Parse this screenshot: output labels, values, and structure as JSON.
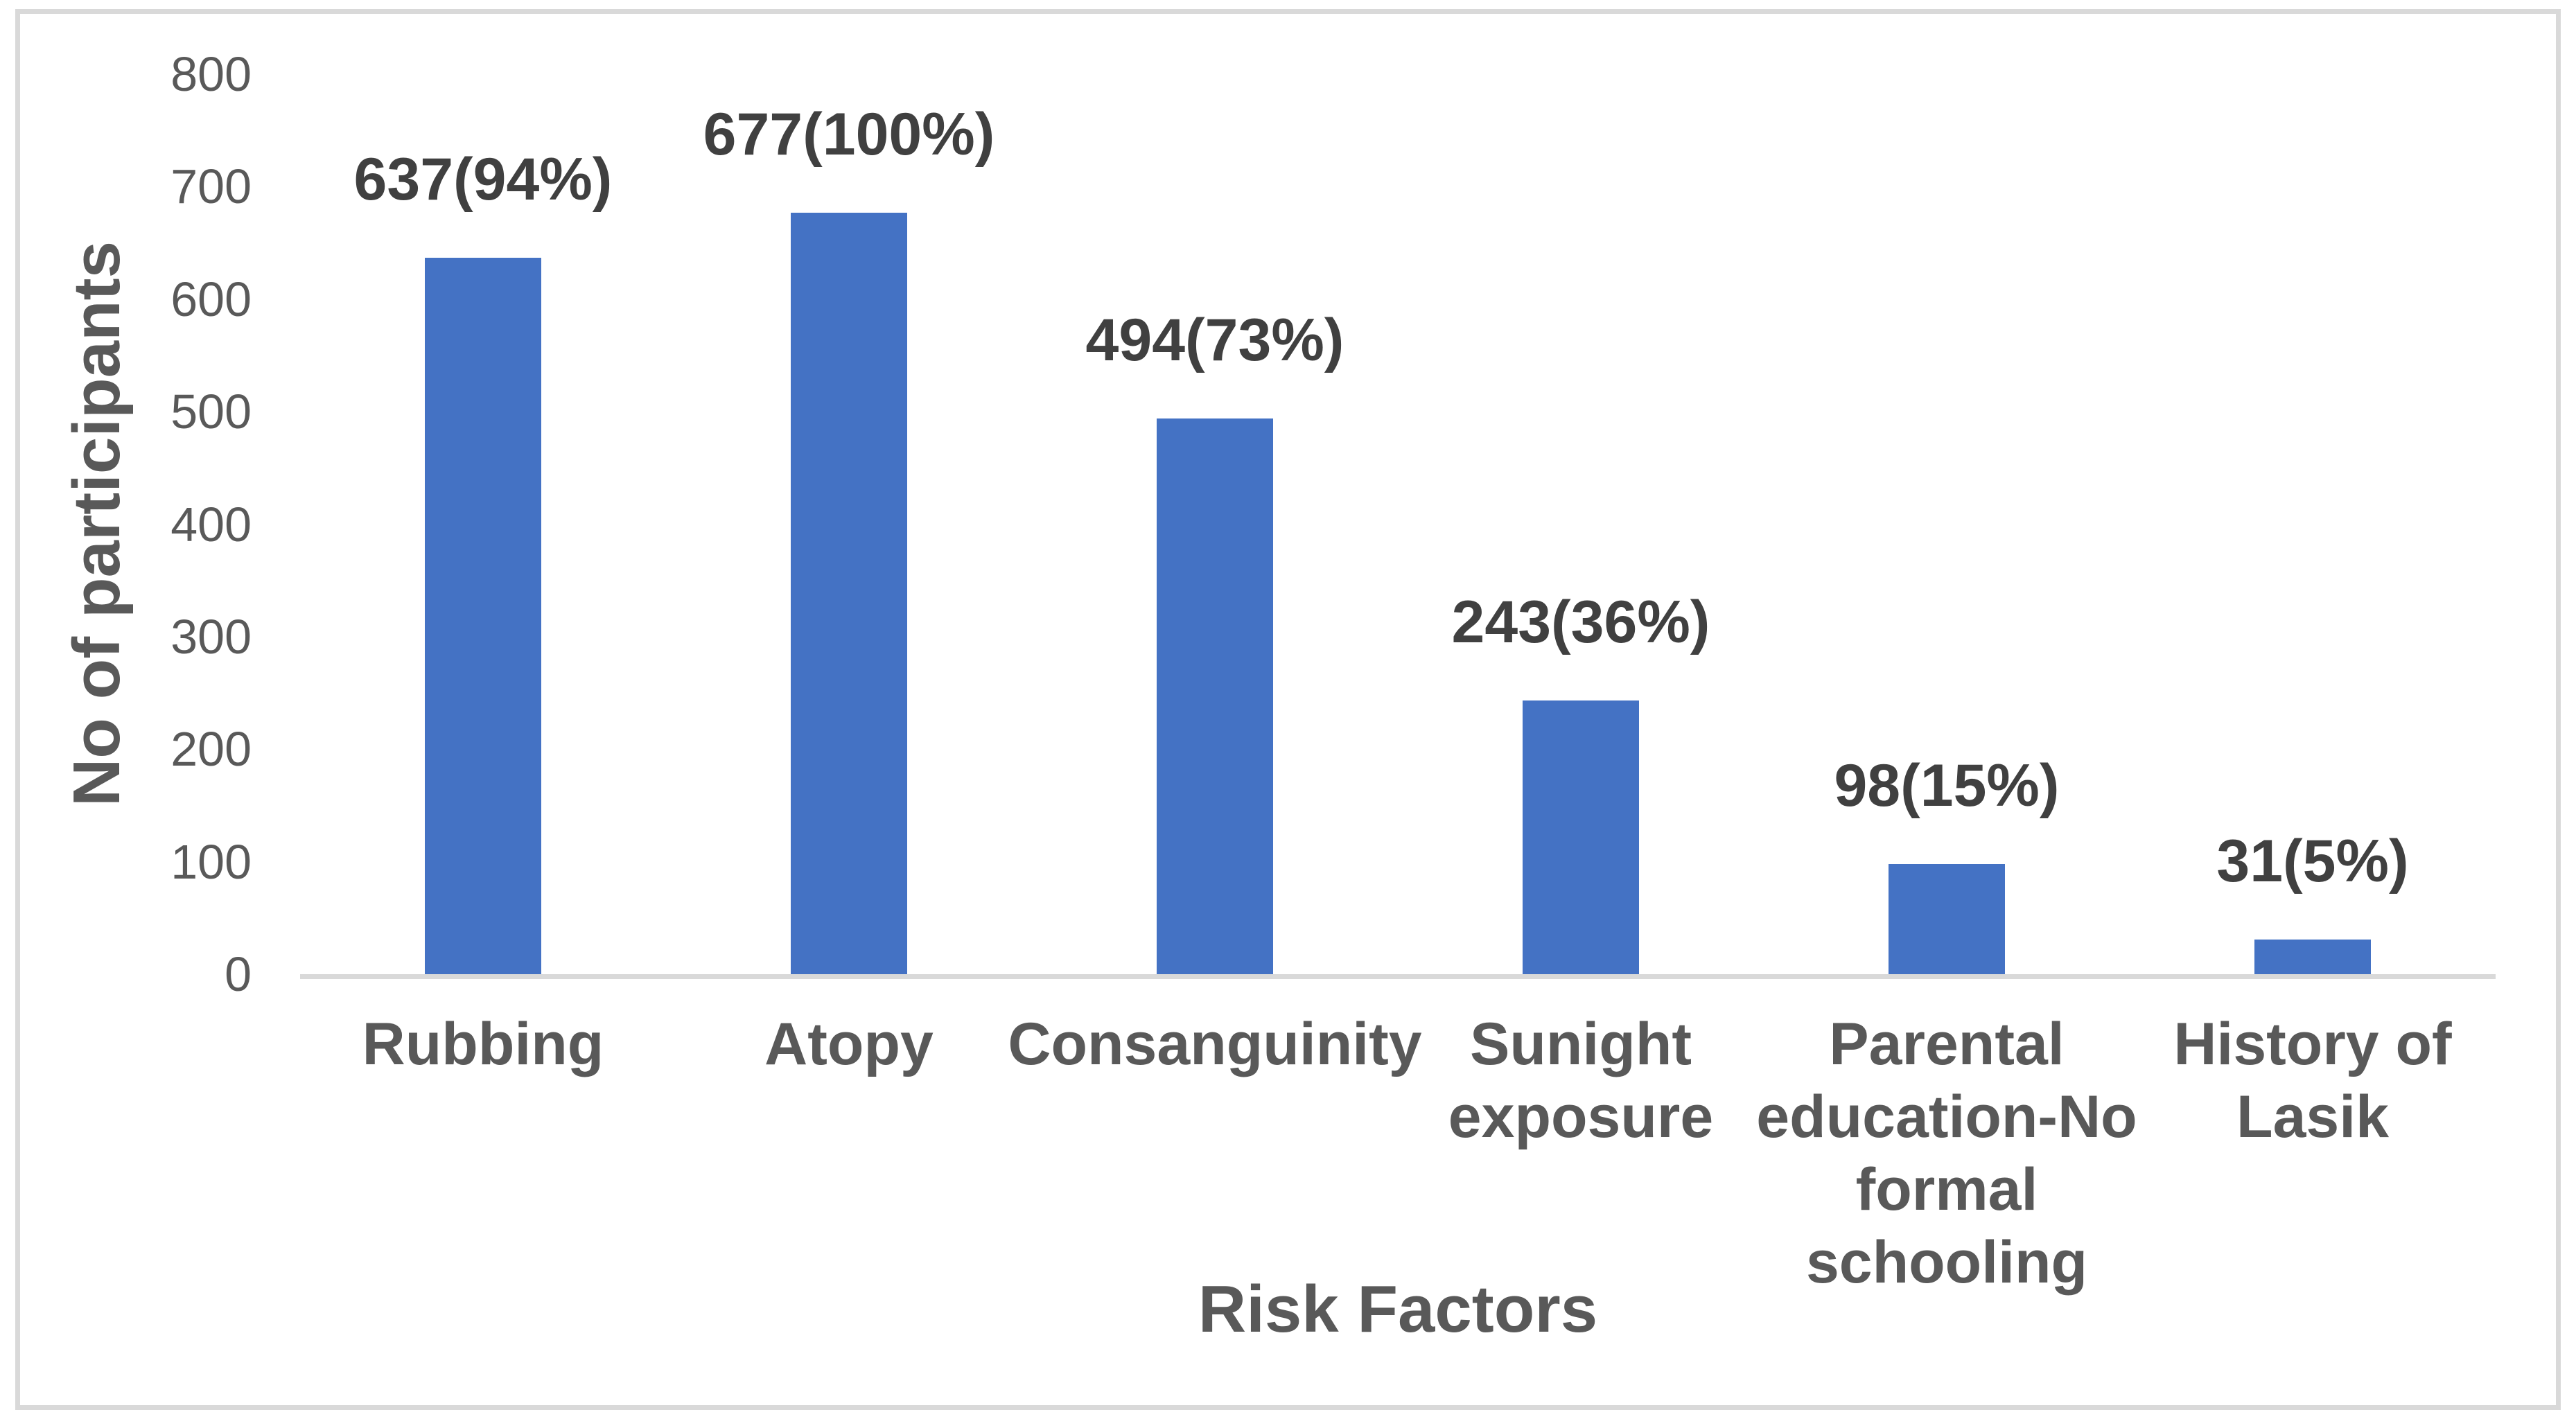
{
  "chart_data": {
    "type": "bar",
    "title": "",
    "xlabel": "Risk Factors",
    "ylabel": "No of participants",
    "categories": [
      "Rubbing",
      "Atopy",
      "Consanguinity",
      "Sunight exposure",
      "Parental education-No formal schooling",
      "History of Lasik"
    ],
    "category_label_lines": [
      [
        "Rubbing"
      ],
      [
        "Atopy"
      ],
      [
        "Consanguinity"
      ],
      [
        "Sunight",
        "exposure"
      ],
      [
        "Parental",
        "education-No",
        "formal",
        "schooling"
      ],
      [
        "History of",
        "Lasik"
      ]
    ],
    "values": [
      637,
      677,
      494,
      243,
      98,
      31
    ],
    "value_labels": [
      "637(94%)",
      "677(100%)",
      "494(73%)",
      "243(36%)",
      "98(15%)",
      "31(5%)"
    ],
    "ylim": [
      0,
      800
    ],
    "yticks": [
      0,
      100,
      200,
      300,
      400,
      500,
      600,
      700,
      800
    ],
    "grid": false,
    "legend": null,
    "colors": {
      "bar": "#4472C4",
      "axis_line": "#D9D9D9",
      "frame_border": "#D9D9D9",
      "axis_text": "#595959",
      "value_label_text": "#404040"
    }
  }
}
